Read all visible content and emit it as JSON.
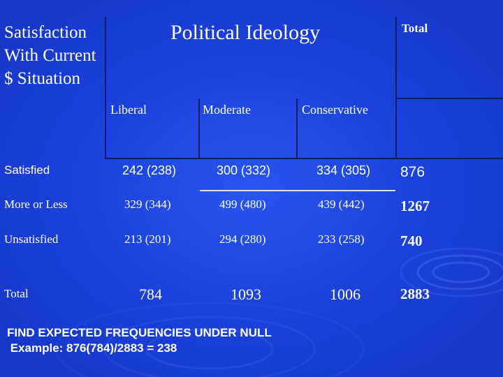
{
  "table": {
    "row_header_title": "Satisfaction With Current $ Situation",
    "group_header": "Political Ideology",
    "total_header": "Total",
    "columns": [
      "Liberal",
      "Moderate",
      "Conservative"
    ],
    "rows": [
      {
        "label": "Satisfied",
        "cells": [
          "242 (238)",
          "300 (332)",
          "334 (305)"
        ],
        "total": "876"
      },
      {
        "label": "More or Less",
        "cells": [
          "329 (344)",
          "499 (480)",
          "439 (442)"
        ],
        "total": "1267"
      },
      {
        "label": "Unsatisfied",
        "cells": [
          "213 (201)",
          "294 (280)",
          "233 (258)"
        ],
        "total": "740"
      }
    ],
    "totals_row": {
      "label": "Total",
      "cells": [
        "784",
        "1093",
        "1006"
      ],
      "total": "2883"
    }
  },
  "footnote": {
    "line1": "FIND EXPECTED FREQUENCIES UNDER NULL",
    "line2": " Example: 876(784)/2883 = 238"
  },
  "colors": {
    "background": "#1a3fd6",
    "grid_lines": "#111a66",
    "text": "#ffffff"
  }
}
